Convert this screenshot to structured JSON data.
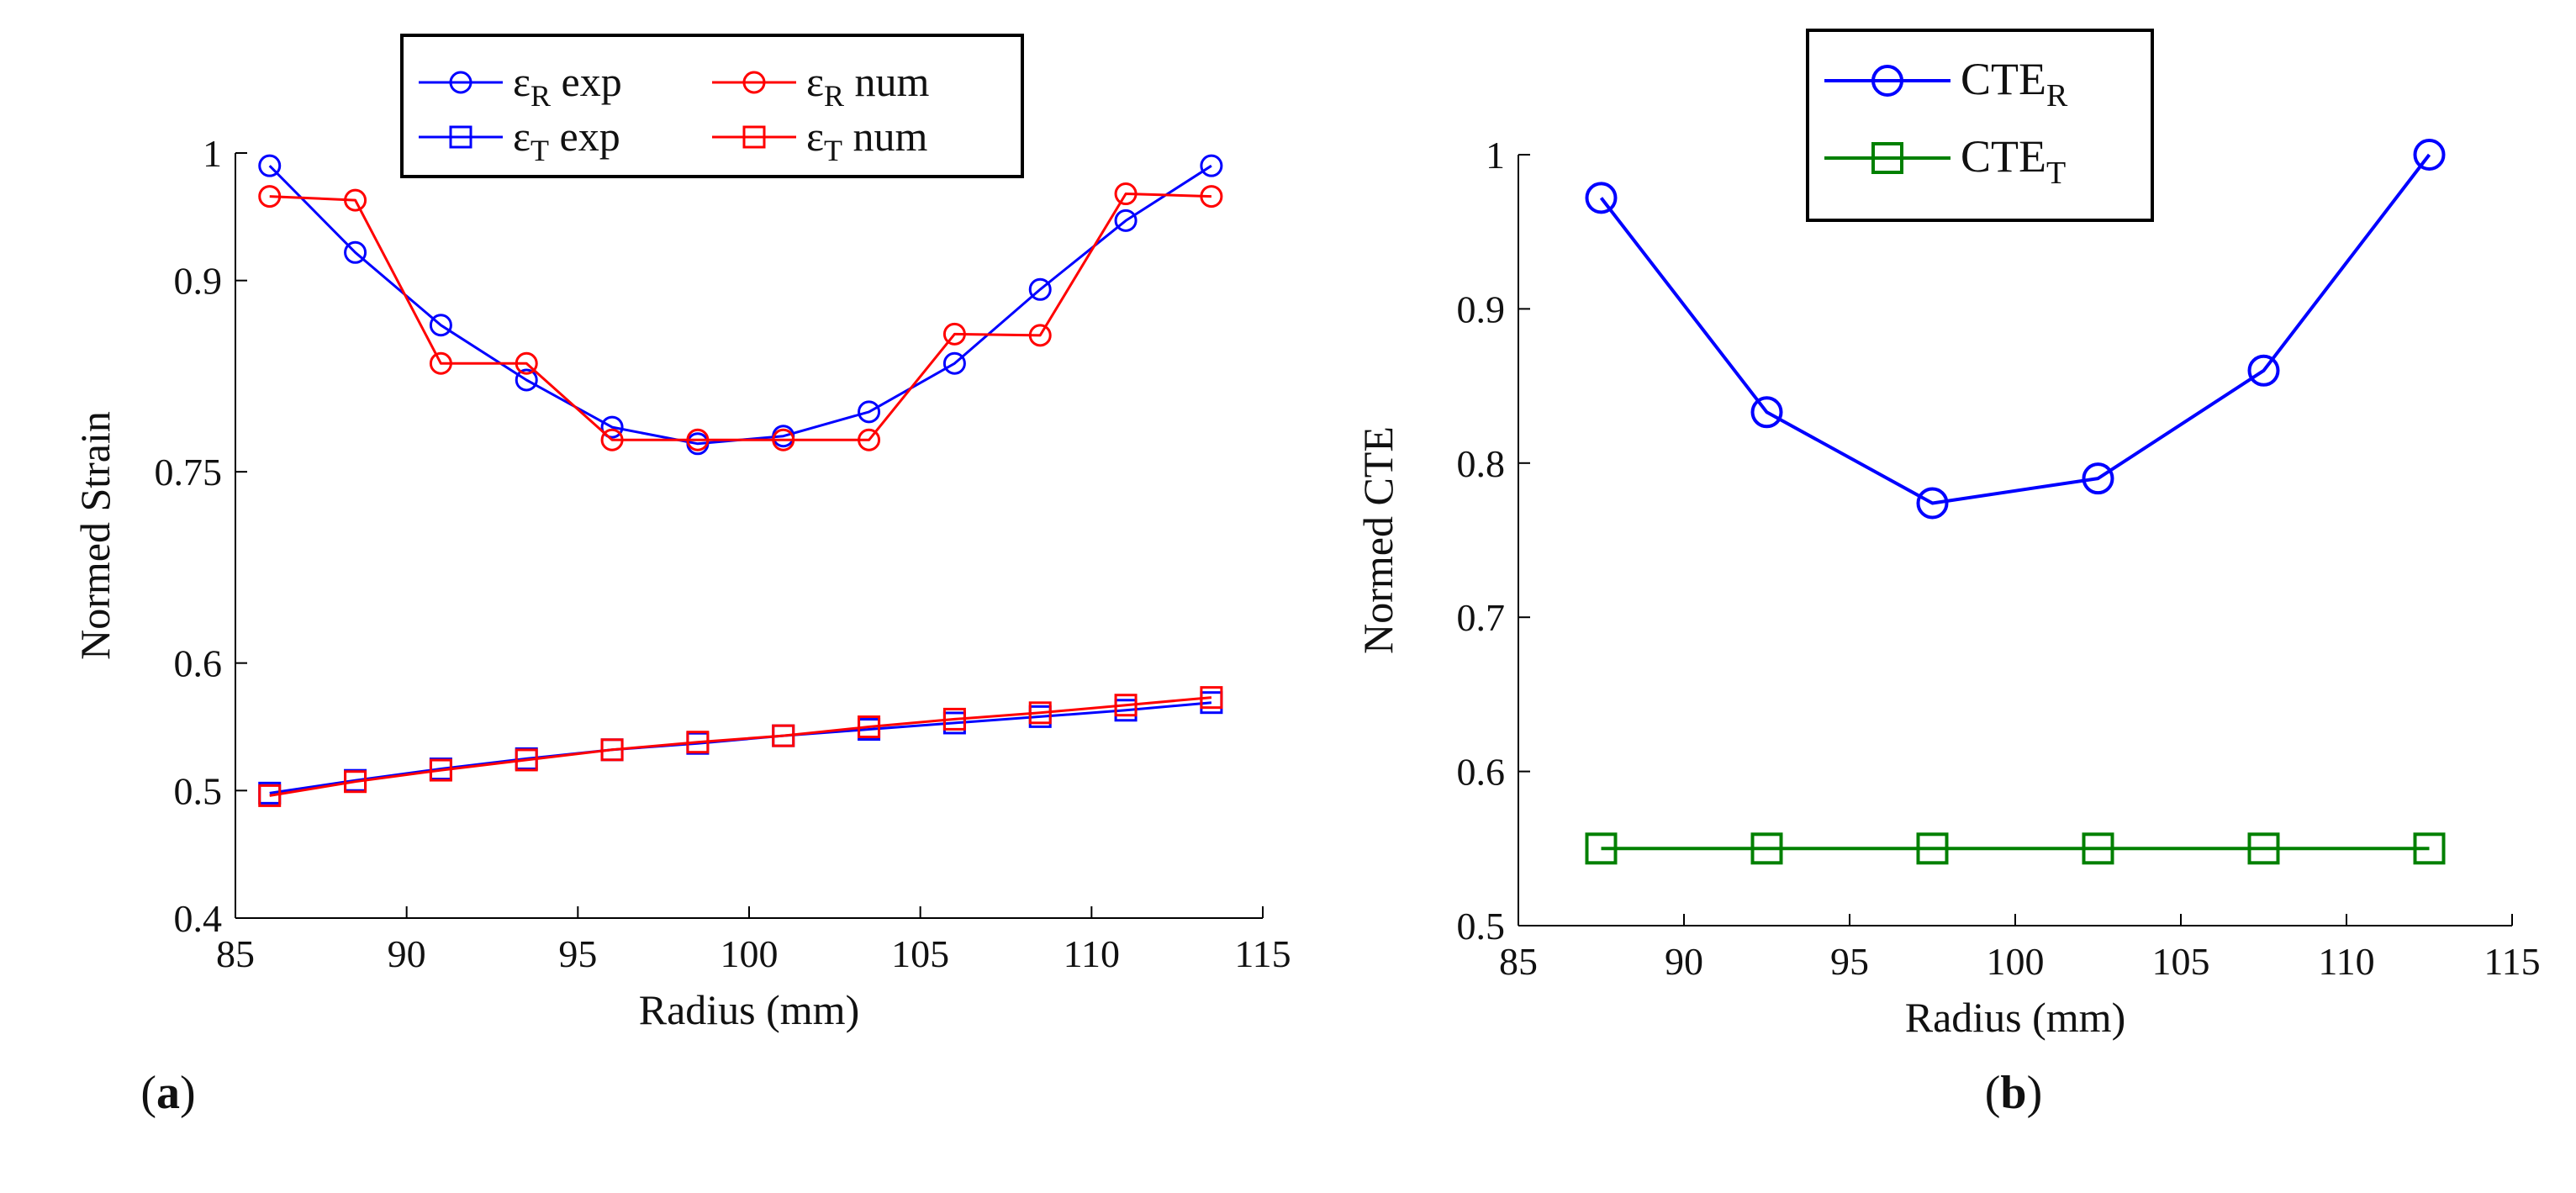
{
  "chart_data": [
    {
      "type": "line",
      "panel_label": "a",
      "xlabel": "Radius (mm)",
      "ylabel": "Normed Strain",
      "xlim": [
        85,
        115
      ],
      "ylim": [
        0.4,
        1.0
      ],
      "xticks": [
        85,
        90,
        95,
        100,
        105,
        110,
        115
      ],
      "yticks": [
        0.4,
        0.5,
        0.6,
        0.75,
        0.9,
        1
      ],
      "ytick_labels": [
        "0.4",
        "0.5",
        "0.6",
        "0.75",
        "0.9",
        "1"
      ],
      "legend_placement": "top-center",
      "series": [
        {
          "name": "exp",
          "symbol": "ε",
          "subscript": "R",
          "color": "#0000ff",
          "marker": "circle",
          "x": [
            86,
            88.5,
            91,
            93.5,
            96,
            98.5,
            101,
            103.5,
            106,
            108.5,
            111,
            113.5
          ],
          "y": [
            0.99,
            0.922,
            0.865,
            0.822,
            0.785,
            0.772,
            0.778,
            0.797,
            0.835,
            0.893,
            0.947,
            0.99
          ]
        },
        {
          "name": "num",
          "symbol": "ε",
          "subscript": "R",
          "color": "#ff0000",
          "marker": "circle",
          "x": [
            86,
            88.5,
            91,
            93.5,
            96,
            98.5,
            101,
            103.5,
            106,
            108.5,
            111,
            113.5
          ],
          "y": [
            0.966,
            0.963,
            0.835,
            0.835,
            0.775,
            0.775,
            0.775,
            0.775,
            0.858,
            0.857,
            0.968,
            0.966
          ]
        },
        {
          "name": "exp",
          "symbol": "ε",
          "subscript": "T",
          "color": "#0000ff",
          "marker": "square",
          "x": [
            86,
            88.5,
            91,
            93.5,
            96,
            98.5,
            101,
            103.5,
            106,
            108.5,
            111,
            113.5
          ],
          "y": [
            0.498,
            0.508,
            0.517,
            0.525,
            0.532,
            0.537,
            0.543,
            0.548,
            0.553,
            0.558,
            0.563,
            0.569
          ]
        },
        {
          "name": "num",
          "symbol": "ε",
          "subscript": "T",
          "color": "#ff0000",
          "marker": "square",
          "x": [
            86,
            88.5,
            91,
            93.5,
            96,
            98.5,
            101,
            103.5,
            106,
            108.5,
            111,
            113.5
          ],
          "y": [
            0.496,
            0.507,
            0.516,
            0.524,
            0.532,
            0.538,
            0.543,
            0.55,
            0.556,
            0.561,
            0.567,
            0.573
          ]
        }
      ]
    },
    {
      "type": "line",
      "panel_label": "b",
      "xlabel": "Radius (mm)",
      "ylabel": "Normed CTE",
      "xlim": [
        85,
        115
      ],
      "ylim": [
        0.5,
        1.0
      ],
      "xticks": [
        85,
        90,
        95,
        100,
        105,
        110,
        115
      ],
      "yticks": [
        0.5,
        0.6,
        0.7,
        0.8,
        0.9,
        1
      ],
      "ytick_labels": [
        "0.5",
        "0.6",
        "0.7",
        "0.8",
        "0.9",
        "1"
      ],
      "legend_placement": "top-center",
      "series": [
        {
          "name": "CTE",
          "subscript": "R",
          "color": "#0000ff",
          "marker": "circle",
          "x": [
            87.5,
            92.5,
            97.5,
            102.5,
            107.5,
            112.5
          ],
          "y": [
            0.972,
            0.833,
            0.774,
            0.79,
            0.86,
            1.0
          ]
        },
        {
          "name": "CTE",
          "subscript": "T",
          "color": "#008000",
          "marker": "square",
          "x": [
            87.5,
            92.5,
            97.5,
            102.5,
            107.5,
            112.5
          ],
          "y": [
            0.55,
            0.55,
            0.55,
            0.55,
            0.55,
            0.55
          ]
        }
      ]
    }
  ]
}
